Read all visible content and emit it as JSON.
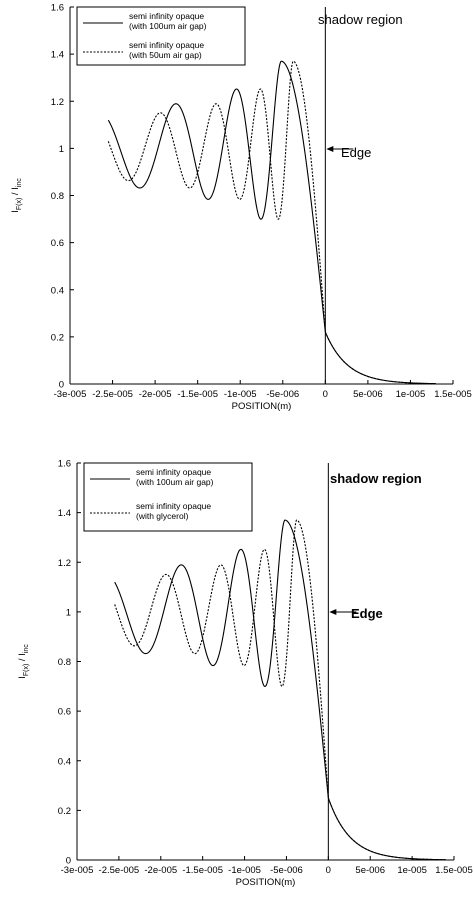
{
  "chart_data": [
    {
      "type": "line",
      "xlabel": "POSITION(m)",
      "ylabel_main": "I",
      "ylabel_sub1": "F(x)",
      "ylabel_mid": " / I",
      "ylabel_sub2": "inc",
      "xlim": [
        -3e-05,
        1.5e-05
      ],
      "ylim": [
        0,
        1.6
      ],
      "x_ticks": [
        -3e-05,
        -2.5e-05,
        -2e-05,
        -1.5e-05,
        -1e-05,
        -5e-06,
        0,
        5e-06,
        1e-05,
        1.5e-05
      ],
      "x_tick_labels": [
        "-3e-005",
        "-2.5e-005",
        "-2e-005",
        "-1.5e-005",
        "-1e-005",
        "-5e-006",
        "0",
        "5e-006",
        "1e-005",
        "1.5e-005"
      ],
      "y_ticks": [
        0,
        0.2,
        0.4,
        0.6,
        0.8,
        1,
        1.2,
        1.4,
        1.6
      ],
      "y_tick_labels": [
        "0",
        "0.2",
        "0.4",
        "0.6",
        "0.8",
        "1",
        "1.2",
        "1.4",
        "1.6"
      ],
      "annotations": {
        "region": "shadow region",
        "edge": "Edge"
      },
      "legend_position": "top-left",
      "series": [
        {
          "name": "semi infinity opaque (with 100um air gap)",
          "legend_line1": "semi infinity opaque",
          "legend_line2": "(with 100um air gap)",
          "style": "solid",
          "peak_x": -5.2e-06,
          "peak_y": 1.37,
          "edge_y": 0.22,
          "x_start": -2.55e-05,
          "x_end": 1.3e-05
        },
        {
          "name": "semi infinity opaque (with 50um air gap)",
          "legend_line1": "semi infinity opaque",
          "legend_line2": "(with 50um air gap)",
          "style": "dashed",
          "peak_x": -3.8e-06,
          "peak_y": 1.37,
          "edge_y": 0.22,
          "x_start": -2.55e-05,
          "x_end": 1.3e-05
        }
      ]
    },
    {
      "type": "line",
      "xlabel": "POSITION(m)",
      "ylabel_main": "I",
      "ylabel_sub1": "F(x)",
      "ylabel_mid": " / I",
      "ylabel_sub2": "inc",
      "xlim": [
        -3e-05,
        1.5e-05
      ],
      "ylim": [
        0,
        1.6
      ],
      "x_ticks": [
        -3e-05,
        -2.5e-05,
        -2e-05,
        -1.5e-05,
        -1e-05,
        -5e-06,
        0,
        5e-06,
        1e-05,
        1.5e-05
      ],
      "x_tick_labels": [
        "-3e-005",
        "-2.5e-005",
        "-2e-005",
        "-1.5e-005",
        "-1e-005",
        "-5e-006",
        "0",
        "5e-006",
        "1e-005",
        "1.5e-005"
      ],
      "y_ticks": [
        0,
        0.2,
        0.4,
        0.6,
        0.8,
        1,
        1.2,
        1.4,
        1.6
      ],
      "y_tick_labels": [
        "0",
        "0.2",
        "0.4",
        "0.6",
        "0.8",
        "1",
        "1.2",
        "1.4",
        "1.6"
      ],
      "annotations": {
        "region": "shadow region",
        "edge": "Edge"
      },
      "legend_position": "top-left",
      "series": [
        {
          "name": "semi infinity opaque (with 100um air gap)",
          "legend_line1": "semi infinity opaque",
          "legend_line2": "(with 100um air gap)",
          "style": "solid",
          "peak_x": -5.2e-06,
          "peak_y": 1.37,
          "edge_y": 0.25,
          "x_start": -2.55e-05,
          "x_end": 1.4e-05
        },
        {
          "name": "semi infinity opaque (with glycerol)",
          "legend_line1": "semi infinity opaque",
          "legend_line2": "(with glycerol)",
          "style": "dashed",
          "peak_x": -3.8e-06,
          "peak_y": 1.37,
          "edge_y": 0.25,
          "x_start": -2.55e-05,
          "x_end": 1.4e-05
        }
      ]
    }
  ]
}
